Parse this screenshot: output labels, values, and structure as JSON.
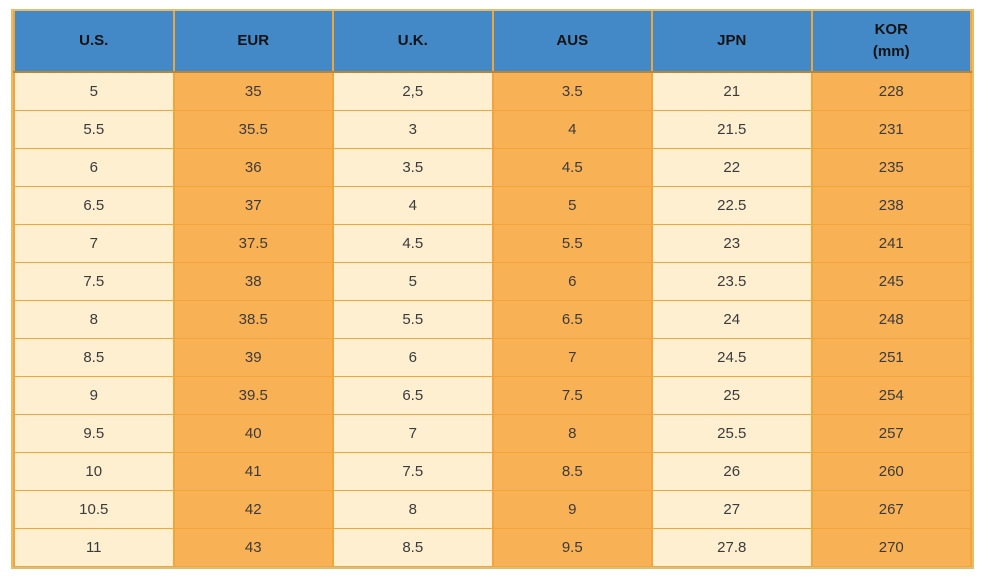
{
  "chart_data": {
    "type": "table",
    "title": "",
    "columns": [
      "U.S.",
      "EUR",
      "U.K.",
      "AUS",
      "JPN",
      "KOR (mm)"
    ],
    "rows": [
      [
        "5",
        "35",
        "2,5",
        "3.5",
        "21",
        "228"
      ],
      [
        "5.5",
        "35.5",
        "3",
        "4",
        "21.5",
        "231"
      ],
      [
        "6",
        "36",
        "3.5",
        "4.5",
        "22",
        "235"
      ],
      [
        "6.5",
        "37",
        "4",
        "5",
        "22.5",
        "238"
      ],
      [
        "7",
        "37.5",
        "4.5",
        "5.5",
        "23",
        "241"
      ],
      [
        "7.5",
        "38",
        "5",
        "6",
        "23.5",
        "245"
      ],
      [
        "8",
        "38.5",
        "5.5",
        "6.5",
        "24",
        "248"
      ],
      [
        "8.5",
        "39",
        "6",
        "7",
        "24.5",
        "251"
      ],
      [
        "9",
        "39.5",
        "6.5",
        "7.5",
        "25",
        "254"
      ],
      [
        "9.5",
        "40",
        "7",
        "8",
        "25.5",
        "257"
      ],
      [
        "10",
        "41",
        "7.5",
        "8.5",
        "26",
        "260"
      ],
      [
        "10.5",
        "42",
        "8",
        "9",
        "27",
        "267"
      ],
      [
        "11",
        "43",
        "8.5",
        "9.5",
        "27.8",
        "270"
      ]
    ],
    "layout": {
      "grid": "on",
      "column_stripe_pattern": [
        "cream",
        "orange",
        "cream",
        "orange",
        "cream",
        "orange"
      ],
      "last_row_clipped_at_bottom": true
    }
  },
  "header_cells": [
    {
      "label": "U.S."
    },
    {
      "label": "EUR"
    },
    {
      "label": "U.K."
    },
    {
      "label": "AUS"
    },
    {
      "label": "JPN"
    },
    {
      "label": "KOR",
      "sublabel": "(mm)"
    }
  ],
  "colors": {
    "header_bg": "#4389c7",
    "cream_cell_bg": "#fdefd0",
    "orange_cell_bg": "#f9b156",
    "inner_border": "#f0a53d",
    "outer_border": "#e3bc6e",
    "header_text": "#121212",
    "cell_text": "#3b3b3b",
    "page_bg": "#ffffff"
  }
}
